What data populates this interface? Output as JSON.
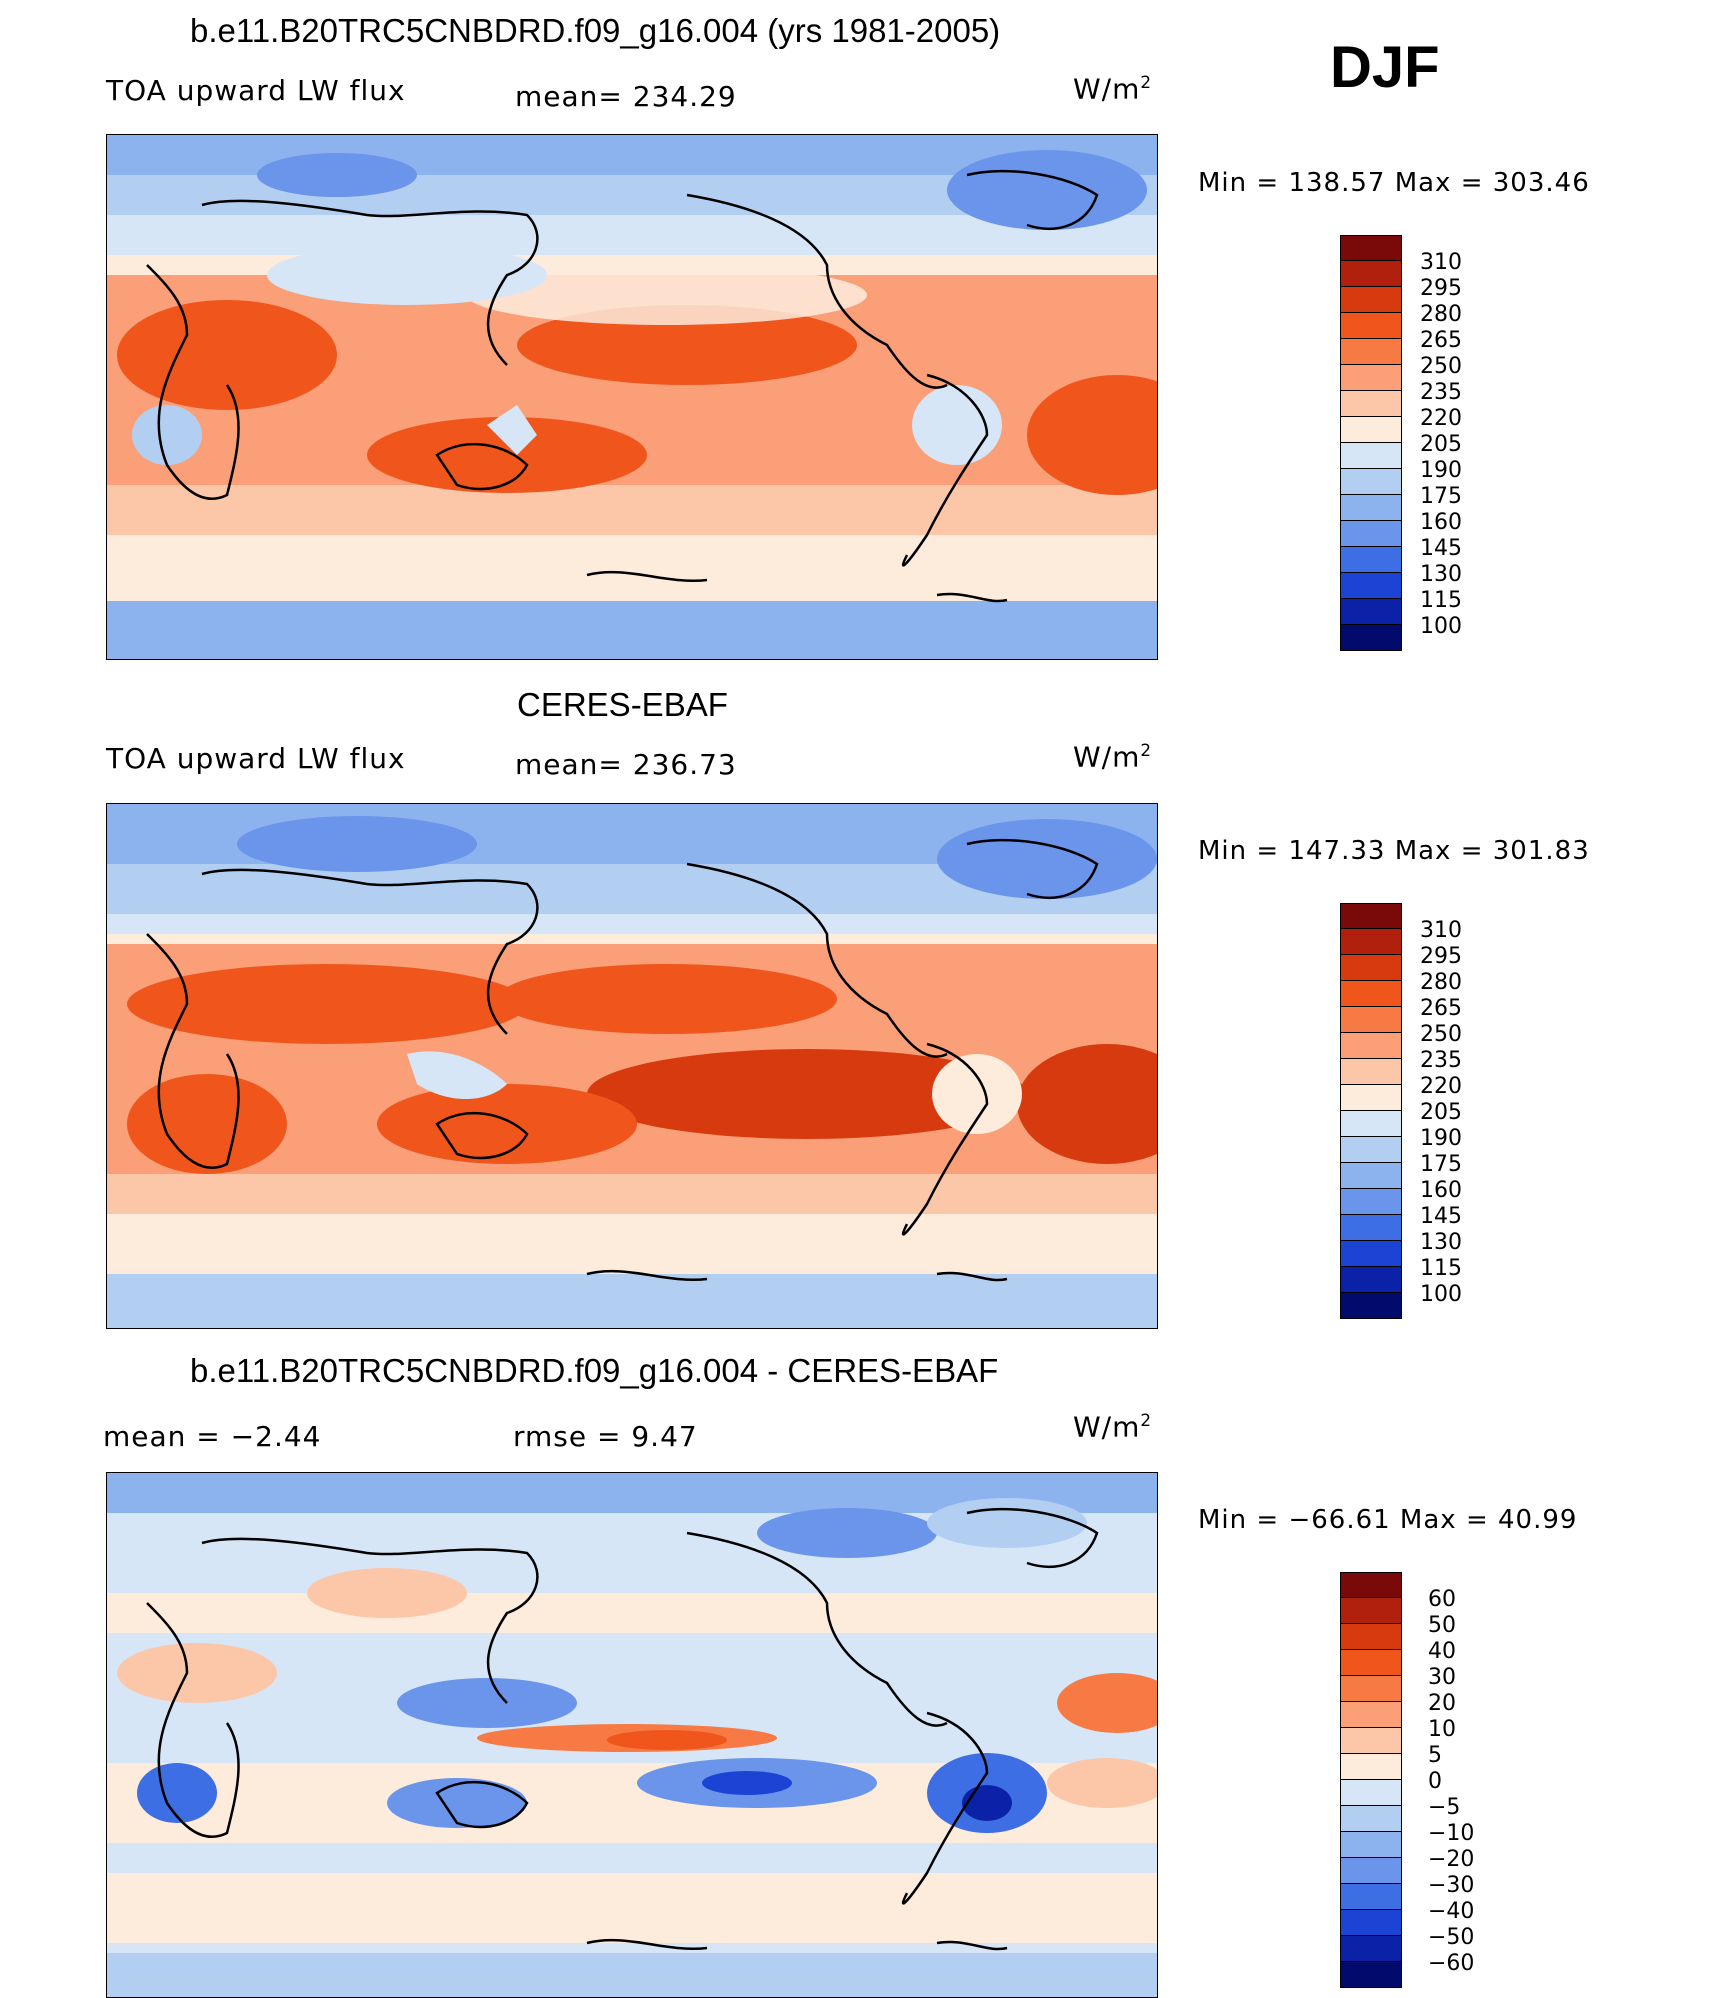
{
  "season": "DJF",
  "units_base": "W/m",
  "units_exp": "2",
  "panels": [
    {
      "title": "b.e11.B20TRC5CNBDRD.f09_g16.004 (yrs 1981-2005)",
      "left_label": "TOA upward LW flux",
      "center_label": "mean=  234.29",
      "stats": "Min  =  138.57  Max  =  303.46",
      "colorbar": [
        "310",
        "295",
        "280",
        "265",
        "250",
        "235",
        "220",
        "205",
        "190",
        "175",
        "160",
        "145",
        "130",
        "115",
        "100"
      ]
    },
    {
      "title": "CERES-EBAF",
      "left_label": "TOA upward LW flux",
      "center_label": "mean=  236.73",
      "stats": "Min  =  147.33  Max  =  301.83",
      "colorbar": [
        "310",
        "295",
        "280",
        "265",
        "250",
        "235",
        "220",
        "205",
        "190",
        "175",
        "160",
        "145",
        "130",
        "115",
        "100"
      ]
    },
    {
      "title": "b.e11.B20TRC5CNBDRD.f09_g16.004 - CERES-EBAF",
      "left_label": "mean  =    −2.44",
      "center_label": "rmse  =     9.47",
      "stats": "Min  =  −66.61  Max  =     40.99",
      "colorbar": [
        "60",
        "50",
        "40",
        "30",
        "20",
        "10",
        "5",
        "0",
        "−5",
        "−10",
        "−20",
        "−30",
        "−40",
        "−50",
        "−60"
      ]
    }
  ],
  "colorbar_colors": [
    "#7a0a0a",
    "#b0200d",
    "#d83a10",
    "#f0551c",
    "#f77a45",
    "#fa9f77",
    "#fcc6a8",
    "#fdebdc",
    "#d6e6f7",
    "#b2cff2",
    "#8db3ef",
    "#6a95ea",
    "#3e6ee4",
    "#1c44d4",
    "#0b22a8",
    "#020b6b"
  ]
}
